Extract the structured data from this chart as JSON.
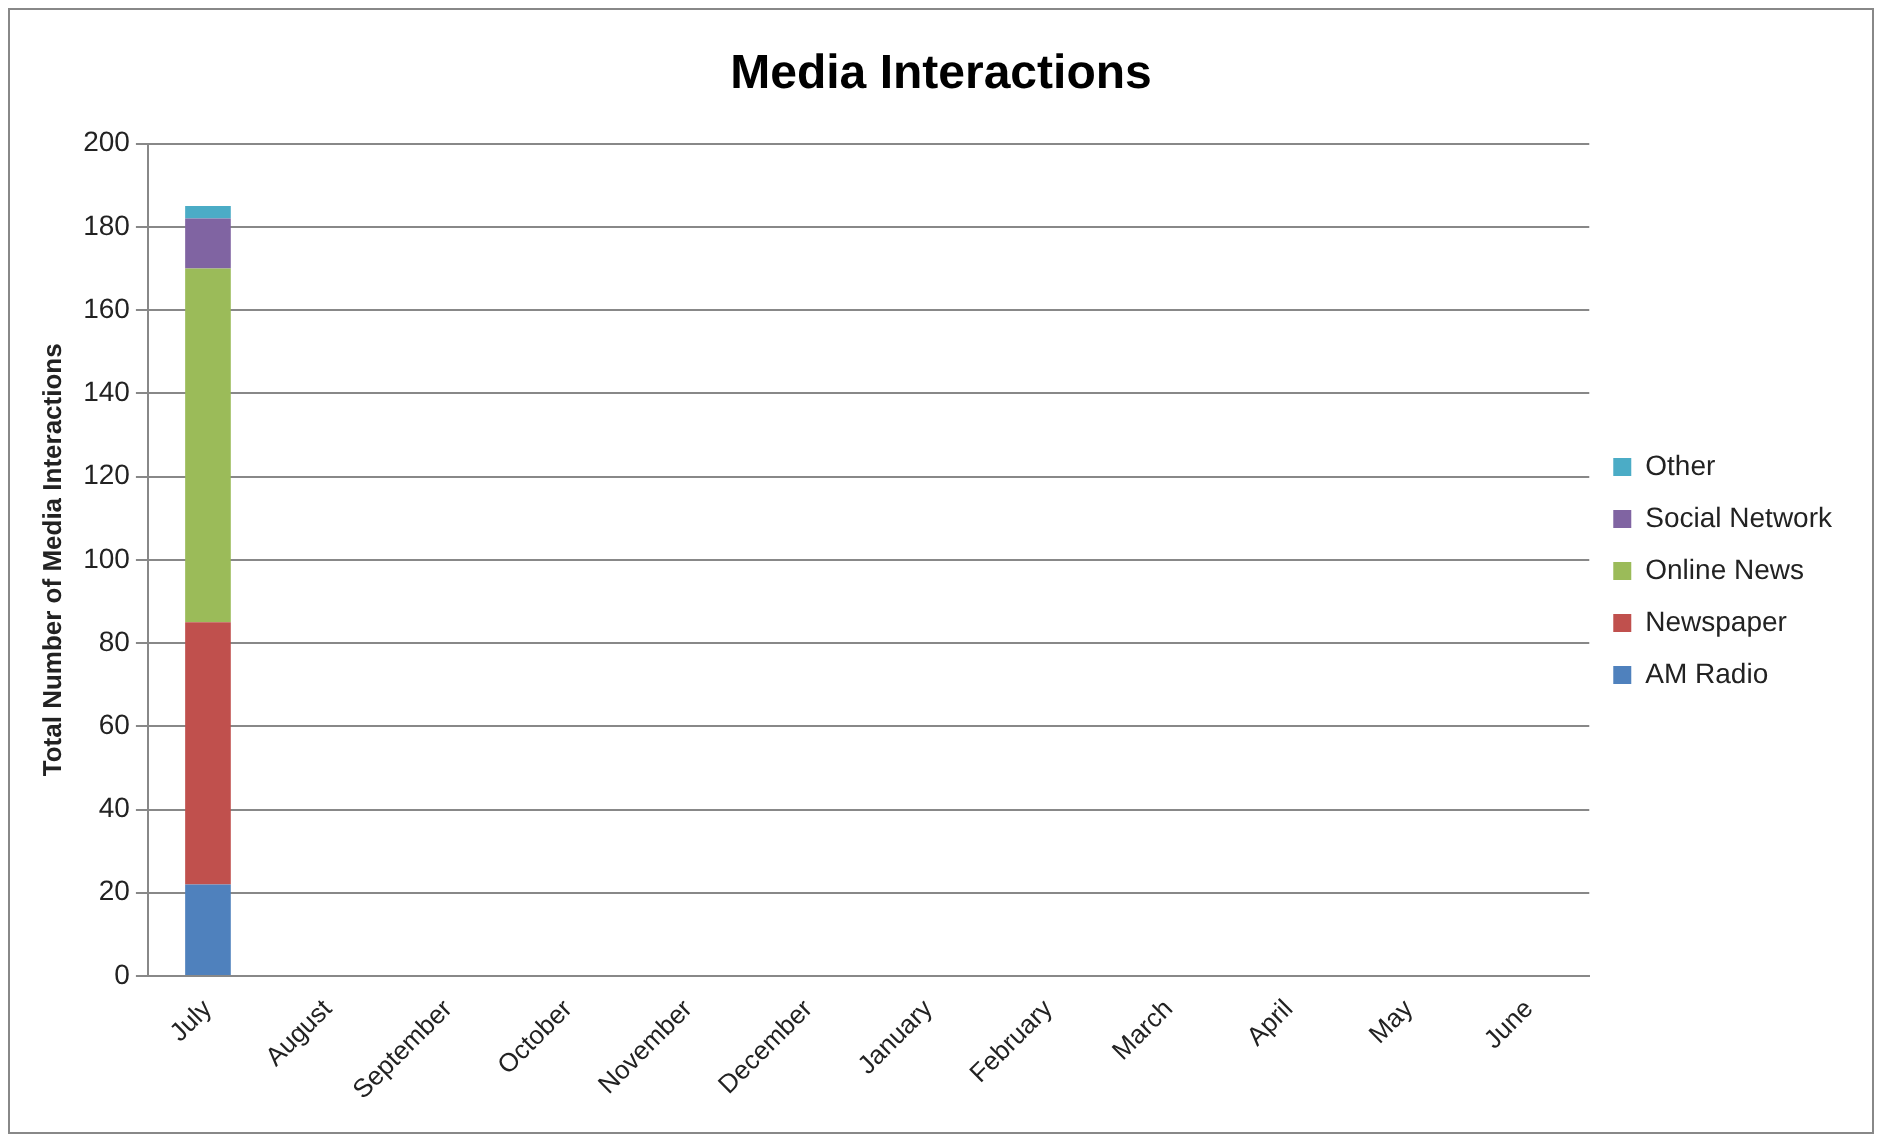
{
  "chart_data": {
    "type": "bar",
    "title": "Media Interactions",
    "ylabel": "Total Number of Media Interactions",
    "categories": [
      "July",
      "August",
      "September",
      "October",
      "November",
      "December",
      "January",
      "February",
      "March",
      "April",
      "May",
      "June"
    ],
    "stacked": true,
    "ylim": [
      0,
      200
    ],
    "yticks": [
      0,
      20,
      40,
      60,
      80,
      100,
      120,
      140,
      160,
      180,
      200
    ],
    "grid": "y",
    "legend": "right",
    "series": [
      {
        "name": "AM Radio",
        "color": "#4f81bd",
        "values": [
          22,
          null,
          null,
          null,
          null,
          null,
          null,
          null,
          null,
          null,
          null,
          null
        ]
      },
      {
        "name": "Newspaper",
        "color": "#c0504d",
        "values": [
          63,
          null,
          null,
          null,
          null,
          null,
          null,
          null,
          null,
          null,
          null,
          null
        ]
      },
      {
        "name": "Online News",
        "color": "#9bbb59",
        "values": [
          85,
          null,
          null,
          null,
          null,
          null,
          null,
          null,
          null,
          null,
          null,
          null
        ]
      },
      {
        "name": "Social Network",
        "color": "#8064a2",
        "values": [
          12,
          null,
          null,
          null,
          null,
          null,
          null,
          null,
          null,
          null,
          null,
          null
        ]
      },
      {
        "name": "Other",
        "color": "#4bacc6",
        "values": [
          3,
          null,
          null,
          null,
          null,
          null,
          null,
          null,
          null,
          null,
          null,
          null
        ]
      }
    ]
  }
}
